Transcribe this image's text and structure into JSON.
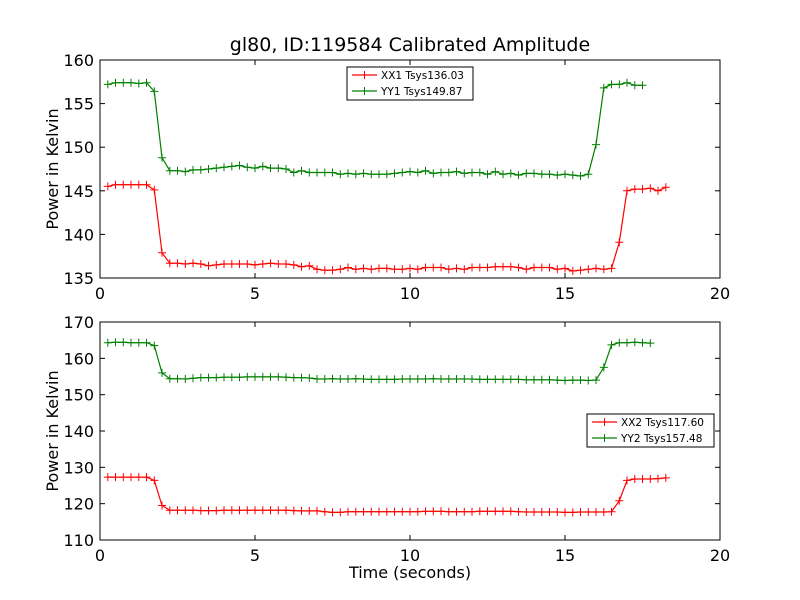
{
  "title": "gl80, ID:119584 Calibrated Amplitude",
  "colors": {
    "xx": "#ff0000",
    "yy": "#008000"
  },
  "chart_data": [
    {
      "type": "line",
      "xlabel": "",
      "ylabel": "Power in Kelvin",
      "xlim": [
        0,
        20
      ],
      "ylim": [
        135,
        160
      ],
      "xticks": [
        0,
        5,
        10,
        15,
        20
      ],
      "yticks": [
        135,
        140,
        145,
        150,
        155,
        160
      ],
      "grid": false,
      "legend": "top-center",
      "series": [
        {
          "name": "XX1 Tsys136.03",
          "color": "#ff0000",
          "values": [
            145.5,
            145.7,
            145.7,
            145.7,
            145.7,
            145.7,
            145.1,
            137.9,
            136.7,
            136.7,
            136.6,
            136.7,
            136.6,
            136.4,
            136.5,
            136.6,
            136.6,
            136.6,
            136.6,
            136.5,
            136.6,
            136.7,
            136.6,
            136.6,
            136.5,
            136.3,
            136.4,
            136.0,
            135.9,
            135.9,
            136.0,
            136.2,
            136.0,
            136.1,
            136.0,
            136.1,
            136.1,
            136.0,
            136.0,
            136.1,
            136.0,
            136.2,
            136.2,
            136.2,
            136.0,
            136.1,
            136.0,
            136.2,
            136.2,
            136.2,
            136.3,
            136.3,
            136.3,
            136.2,
            136.0,
            136.2,
            136.2,
            136.2,
            136.0,
            136.1,
            135.8,
            135.9,
            136.0,
            136.1,
            136.0,
            136.1,
            139.1,
            145.0,
            145.2,
            145.2,
            145.3,
            145.0,
            145.4
          ]
        },
        {
          "name": "YY1 Tsys149.87",
          "color": "#008000",
          "values": [
            157.2,
            157.4,
            157.4,
            157.4,
            157.3,
            157.4,
            156.4,
            148.8,
            147.3,
            147.3,
            147.2,
            147.4,
            147.4,
            147.5,
            147.6,
            147.7,
            147.8,
            147.9,
            147.7,
            147.6,
            147.8,
            147.6,
            147.6,
            147.5,
            147.1,
            147.3,
            147.1,
            147.1,
            147.1,
            147.1,
            146.9,
            147.0,
            146.9,
            147.0,
            146.9,
            146.9,
            146.9,
            147.0,
            147.1,
            147.2,
            147.1,
            147.3,
            147.0,
            147.1,
            147.1,
            147.2,
            147.0,
            147.1,
            147.1,
            146.9,
            147.2,
            146.9,
            147.0,
            146.8,
            147.0,
            147.0,
            146.9,
            146.9,
            146.8,
            146.9,
            146.8,
            146.7,
            146.9,
            150.3,
            156.8,
            157.2,
            157.2,
            157.4,
            157.1,
            157.1
          ]
        }
      ],
      "x_step": 0.25,
      "x_start": 0.25
    },
    {
      "type": "line",
      "xlabel": "Time (seconds)",
      "ylabel": "Power in Kelvin",
      "xlim": [
        0,
        20
      ],
      "ylim": [
        110,
        170
      ],
      "xticks": [
        0,
        5,
        10,
        15,
        20
      ],
      "yticks": [
        110,
        120,
        130,
        140,
        150,
        160,
        170
      ],
      "grid": false,
      "legend": "center-right",
      "series": [
        {
          "name": "XX2 Tsys117.60",
          "color": "#ff0000",
          "values": [
            127.3,
            127.3,
            127.3,
            127.3,
            127.3,
            127.3,
            126.4,
            119.5,
            118.2,
            118.2,
            118.2,
            118.2,
            118.1,
            118.1,
            118.1,
            118.2,
            118.2,
            118.2,
            118.2,
            118.2,
            118.2,
            118.2,
            118.2,
            118.2,
            118.1,
            118.0,
            118.0,
            118.0,
            117.8,
            117.6,
            117.6,
            117.8,
            117.8,
            117.8,
            117.8,
            117.8,
            117.8,
            117.8,
            117.8,
            117.8,
            117.8,
            117.9,
            117.9,
            117.9,
            117.8,
            117.8,
            117.8,
            117.8,
            117.9,
            117.9,
            117.9,
            117.9,
            117.9,
            117.8,
            117.7,
            117.7,
            117.7,
            117.7,
            117.7,
            117.6,
            117.6,
            117.7,
            117.7,
            117.7,
            117.7,
            117.8,
            120.8,
            126.4,
            126.8,
            126.8,
            126.8,
            126.9,
            127.1
          ]
        },
        {
          "name": "YY2 Tsys157.48",
          "color": "#008000",
          "values": [
            164.3,
            164.4,
            164.4,
            164.3,
            164.3,
            164.3,
            163.5,
            156.0,
            154.4,
            154.4,
            154.3,
            154.5,
            154.7,
            154.7,
            154.7,
            154.8,
            154.8,
            154.8,
            154.9,
            154.9,
            154.9,
            154.9,
            154.9,
            154.8,
            154.7,
            154.7,
            154.6,
            154.3,
            154.3,
            154.4,
            154.3,
            154.3,
            154.4,
            154.3,
            154.2,
            154.2,
            154.2,
            154.2,
            154.3,
            154.3,
            154.3,
            154.3,
            154.4,
            154.3,
            154.3,
            154.3,
            154.3,
            154.3,
            154.2,
            154.2,
            154.2,
            154.2,
            154.2,
            154.2,
            154.1,
            154.1,
            154.1,
            154.1,
            154.0,
            153.9,
            154.0,
            154.0,
            153.9,
            154.0,
            157.5,
            163.7,
            164.3,
            164.3,
            164.4,
            164.3,
            164.2
          ]
        }
      ],
      "x_step": 0.25,
      "x_start": 0.25
    }
  ]
}
